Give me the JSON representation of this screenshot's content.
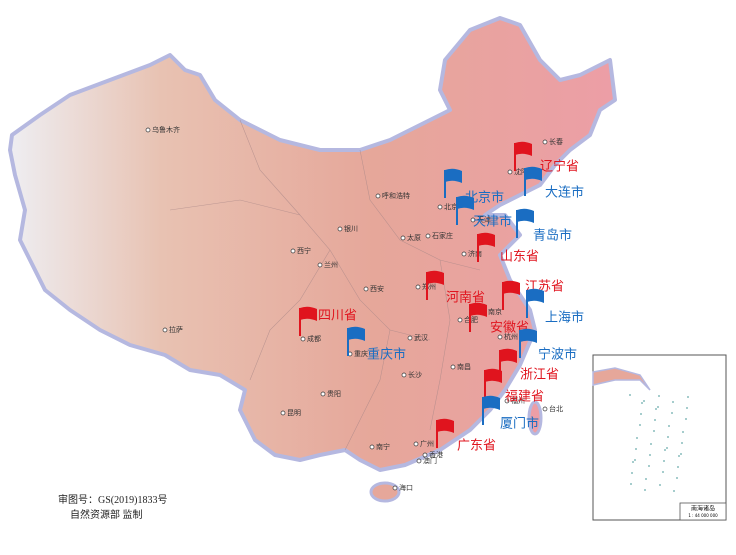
{
  "flags": [
    {
      "label": "辽宁省",
      "color": "#e0141e"
    },
    {
      "label": "大连市",
      "color": "#1a6dc2"
    },
    {
      "label": "北京市",
      "color": "#1a6dc2"
    },
    {
      "label": "天津市",
      "color": "#1a6dc2"
    },
    {
      "label": "青岛市",
      "color": "#1a6dc2"
    },
    {
      "label": "山东省",
      "color": "#e0141e"
    },
    {
      "label": "河南省",
      "color": "#e0141e"
    },
    {
      "label": "江苏省",
      "color": "#e0141e"
    },
    {
      "label": "上海市",
      "color": "#1a6dc2"
    },
    {
      "label": "安徽省",
      "color": "#e0141e"
    },
    {
      "label": "四川省",
      "color": "#e0141e"
    },
    {
      "label": "重庆市",
      "color": "#1a6dc2"
    },
    {
      "label": "宁波市",
      "color": "#1a6dc2"
    },
    {
      "label": "浙江省",
      "color": "#e0141e"
    },
    {
      "label": "福建省",
      "color": "#e0141e"
    },
    {
      "label": "厦门市",
      "color": "#1a6dc2"
    },
    {
      "label": "广东省",
      "color": "#e0141e"
    }
  ],
  "cities": [
    "乌鲁木齐",
    "长春",
    "沈阳",
    "呼和浩特",
    "北京",
    "天津",
    "银川",
    "太原",
    "石家庄",
    "济南",
    "西宁",
    "兰州",
    "郑州",
    "西安",
    "南京",
    "合肥",
    "成都",
    "重庆",
    "武汉",
    "杭州",
    "拉萨",
    "长沙",
    "贵阳",
    "南昌",
    "福州",
    "昆明",
    "南宁",
    "广州",
    "香港",
    "澳门",
    "台北",
    "海口"
  ],
  "footer": {
    "approval": "审图号：GS(2019)1833号",
    "supervisor": "自然资源部 监制"
  },
  "inset": {
    "title": "南海诸岛",
    "scale": "1 : 44 000 000"
  }
}
